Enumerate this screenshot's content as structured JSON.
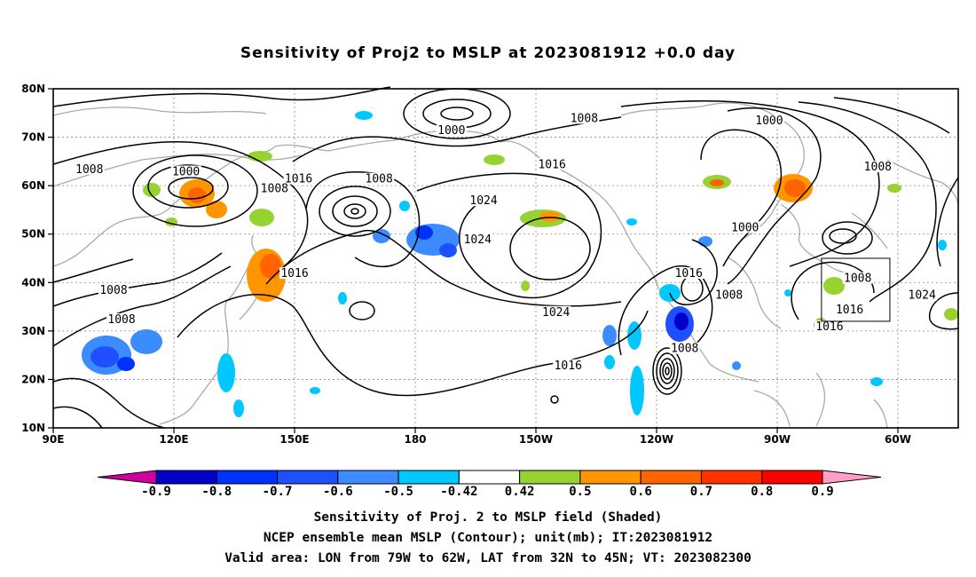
{
  "title": "Sensitivity of Proj2 to MSLP at 2023081912 +0.0 day",
  "lat_labels": [
    "80N",
    "70N",
    "60N",
    "50N",
    "40N",
    "30N",
    "20N",
    "10N"
  ],
  "lon_labels": [
    "90E",
    "120E",
    "150E",
    "180",
    "150W",
    "120W",
    "90W",
    "60W"
  ],
  "map_extent": {
    "lon_min": 90,
    "lon_max": 315,
    "lat_min": 10,
    "lat_max": 80
  },
  "contour_labels": [
    {
      "text": "1000",
      "lon": 189,
      "lat": 71
    },
    {
      "text": "1008",
      "lon": 222,
      "lat": 73.5
    },
    {
      "text": "1000",
      "lon": 268,
      "lat": 73
    },
    {
      "text": "1008",
      "lon": 99,
      "lat": 63
    },
    {
      "text": "1000",
      "lon": 123,
      "lat": 62.5
    },
    {
      "text": "1016",
      "lon": 151,
      "lat": 61
    },
    {
      "text": "1008",
      "lon": 145,
      "lat": 59
    },
    {
      "text": "1008",
      "lon": 171,
      "lat": 61
    },
    {
      "text": "1016",
      "lon": 214,
      "lat": 64
    },
    {
      "text": "1008",
      "lon": 295,
      "lat": 63.5
    },
    {
      "text": "1024",
      "lon": 197,
      "lat": 56.5
    },
    {
      "text": "1024",
      "lon": 195.5,
      "lat": 48.5
    },
    {
      "text": "1000",
      "lon": 262,
      "lat": 51
    },
    {
      "text": "1016",
      "lon": 150,
      "lat": 41.5
    },
    {
      "text": "1016",
      "lon": 248,
      "lat": 41.5
    },
    {
      "text": "1008",
      "lon": 290,
      "lat": 40.5
    },
    {
      "text": "1024",
      "lon": 306,
      "lat": 37
    },
    {
      "text": "1008",
      "lon": 105,
      "lat": 38
    },
    {
      "text": "1008",
      "lon": 258,
      "lat": 37
    },
    {
      "text": "1024",
      "lon": 215,
      "lat": 33.5
    },
    {
      "text": "1016",
      "lon": 288,
      "lat": 34
    },
    {
      "text": "1016",
      "lon": 283,
      "lat": 30.5
    },
    {
      "text": "1008",
      "lon": 107,
      "lat": 32
    },
    {
      "text": "1008",
      "lon": 247,
      "lat": 26
    },
    {
      "text": "1016",
      "lon": 218,
      "lat": 22.5
    }
  ],
  "valid_box": {
    "lon_min": 281,
    "lon_max": 298,
    "lat_min": 32,
    "lat_max": 45
  },
  "colorbar": {
    "labels": [
      "-0.9",
      "-0.8",
      "-0.7",
      "-0.6",
      "-0.5",
      "-0.42",
      "0.42",
      "0.5",
      "0.6",
      "0.7",
      "0.8",
      "0.9"
    ],
    "colors": [
      "#d000a0",
      "#0000c8",
      "#0032ff",
      "#1e50ff",
      "#3c8cff",
      "#00c8ff",
      "#ffffff",
      "#96d232",
      "#ff9600",
      "#ff6400",
      "#ff3200",
      "#ff0000",
      "#ff9fc8"
    ]
  },
  "footer": {
    "line1": "Sensitivity of Proj. 2 to MSLP field (Shaded)",
    "line2": "NCEP ensemble mean MSLP (Contour); unit(mb); IT:2023081912",
    "line3": "Valid area: LON from 79W to 62W, LAT from 32N to 45N; VT: 2023082300"
  }
}
